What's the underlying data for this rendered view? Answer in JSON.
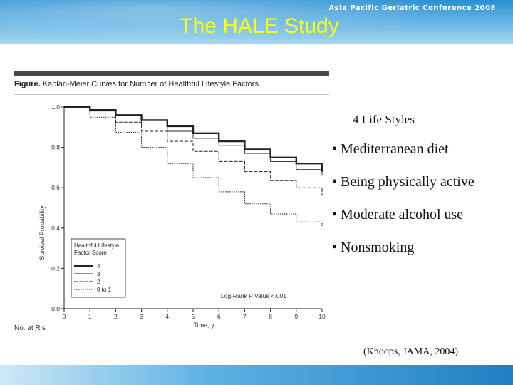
{
  "slide": {
    "title": "The HALE Study",
    "footer": "Asia Pacific Geriatric Conference 2008",
    "figure_caption_bold": "Figure.",
    "figure_caption_rest": "Kaplan-Meier Curves for Number of Healthful Lifestyle Factors",
    "risk_label": "No. at Ris",
    "subtitle": "4 Life Styles",
    "bullets": [
      "• Mediterranean diet",
      "• Being physically active",
      "• Moderate alcohol use",
      "• Nonsmoking"
    ],
    "citation": "(Knoops, JAMA, 2004)"
  },
  "colors": {
    "title": "#ffff00",
    "banner": "#3e9ad8",
    "footer": "#2f8dd0",
    "line": "#222222"
  },
  "chart_data": {
    "type": "line",
    "title": "",
    "xlabel": "Time, y",
    "ylabel": "Survival Probability",
    "xlim": [
      0,
      10
    ],
    "ylim": [
      0,
      1.0
    ],
    "x_ticks": [
      0,
      1,
      2,
      3,
      4,
      5,
      6,
      7,
      8,
      9,
      10
    ],
    "y_ticks": [
      0.0,
      0.2,
      0.4,
      0.6,
      0.8,
      1.0
    ],
    "y_tick_labels": [
      "0.0",
      "0.2",
      "0.4",
      "0.6",
      "0.8",
      "1.0"
    ],
    "legend": {
      "title_lines": [
        "Healthful Lifestyle",
        "Factor Score"
      ],
      "placement": "bottom-left"
    },
    "annotation": "Log-Rank P Value <.001",
    "x": [
      0,
      1,
      2,
      3,
      4,
      5,
      6,
      7,
      8,
      9,
      10
    ],
    "series": [
      {
        "name": "4",
        "style": "thick",
        "values": [
          1.0,
          0.985,
          0.96,
          0.935,
          0.905,
          0.87,
          0.83,
          0.79,
          0.75,
          0.72,
          0.68
        ]
      },
      {
        "name": "3",
        "style": "thin",
        "values": [
          1.0,
          0.98,
          0.945,
          0.91,
          0.88,
          0.845,
          0.81,
          0.77,
          0.73,
          0.69,
          0.66
        ]
      },
      {
        "name": "2",
        "style": "dash",
        "values": [
          1.0,
          0.97,
          0.925,
          0.88,
          0.83,
          0.78,
          0.73,
          0.68,
          0.635,
          0.6,
          0.56
        ]
      },
      {
        "name": "0 to 1",
        "style": "dot",
        "values": [
          1.0,
          0.95,
          0.875,
          0.8,
          0.72,
          0.65,
          0.58,
          0.52,
          0.47,
          0.43,
          0.41
        ]
      }
    ]
  }
}
